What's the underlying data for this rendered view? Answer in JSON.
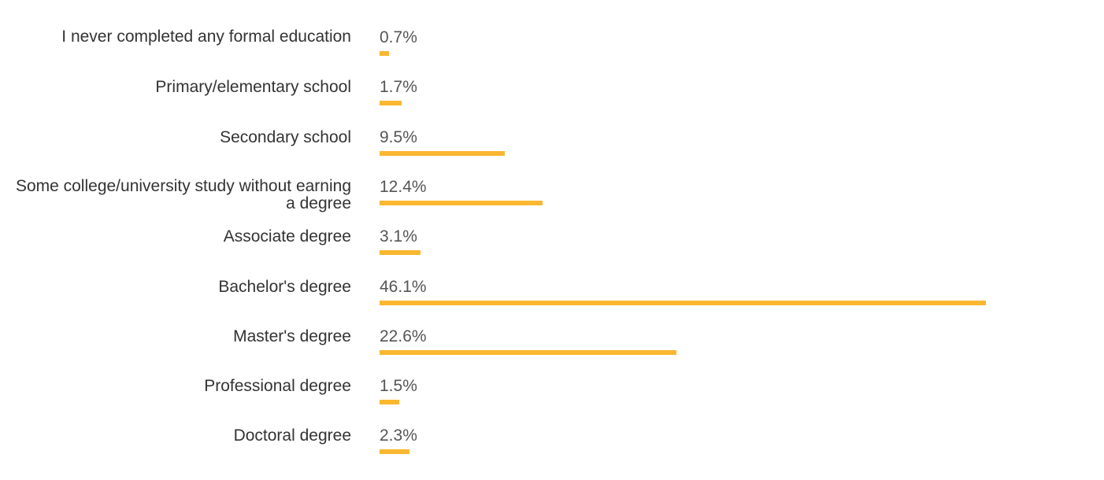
{
  "chart_data": {
    "type": "bar",
    "orientation": "horizontal",
    "categories": [
      "I never completed any formal education",
      "Primary/elementary school",
      "Secondary school",
      "Some college/university study without earning a degree",
      "Associate degree",
      "Bachelor's degree",
      "Master's degree",
      "Professional degree",
      "Doctoral degree"
    ],
    "values": [
      0.7,
      1.7,
      9.5,
      12.4,
      3.1,
      46.1,
      22.6,
      1.5,
      2.3
    ],
    "value_labels": [
      "0.7%",
      "1.7%",
      "9.5%",
      "12.4%",
      "3.1%",
      "46.1%",
      "22.6%",
      "1.5%",
      "2.3%"
    ],
    "bar_color": "#FBB72F",
    "xlim": [
      0,
      46.1
    ],
    "grid": false,
    "legend": "none"
  }
}
